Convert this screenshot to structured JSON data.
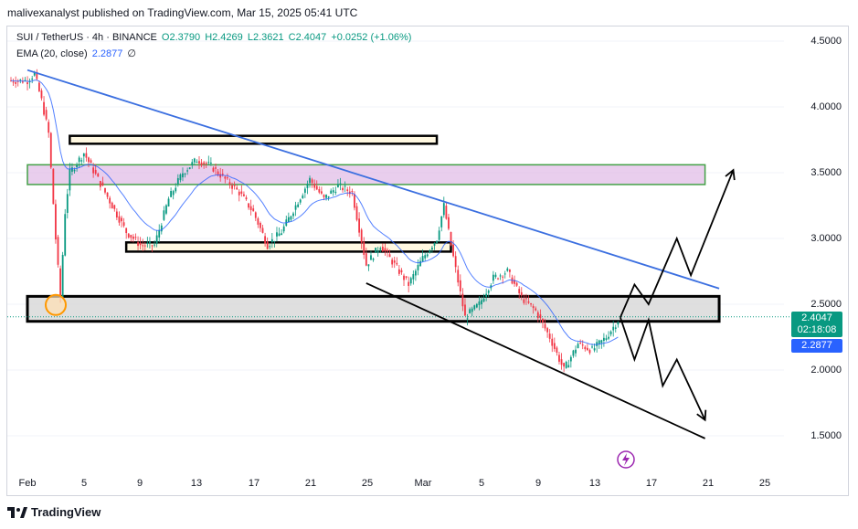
{
  "header": {
    "published_by": "malivexanalyst published on TradingView.com, Mar 15, 2025 05:41 UTC"
  },
  "legend": {
    "symbol": "SUI / TetherUS · 4h · BINANCE",
    "open": "O2.3790",
    "high": "H2.4269",
    "low": "L2.3621",
    "close": "C2.4047",
    "change": "+0.0252 (+1.06%)",
    "ema_label": "EMA (20, close)",
    "ema_value": "2.2877",
    "ema_suffix": "∅"
  },
  "price_axis": [
    "4.5000",
    "4.0000",
    "3.5000",
    "3.0000",
    "2.5000",
    "2.0000",
    "1.5000"
  ],
  "tags": {
    "last_price": "2.4047",
    "countdown": "02:18:08",
    "ema": "2.2877"
  },
  "time_axis": [
    "Feb",
    "5",
    "9",
    "13",
    "17",
    "21",
    "25",
    "Mar",
    "5",
    "9",
    "13",
    "17",
    "21",
    "25"
  ],
  "footer": {
    "brand": "TradingView"
  },
  "colors": {
    "up": "#089981",
    "down": "#f23645",
    "ema": "#2962ff",
    "trendline": "#3b6fe0",
    "resistance_zone": "#e1bee7",
    "support_zone": "#d9d9d9"
  },
  "chart_data": {
    "type": "candlestick",
    "symbol": "SUI / TetherUS",
    "interval": "4h",
    "ylim": [
      1.4,
      4.65
    ],
    "price_ticks": [
      4.5,
      4.0,
      3.5,
      3.0,
      2.5,
      2.0,
      1.5
    ],
    "last": {
      "open": 2.379,
      "high": 2.4269,
      "low": 2.3621,
      "close": 2.4047
    },
    "ema20": 2.2877,
    "anchors": [
      [
        "2025-02-01",
        4.2
      ],
      [
        "2025-02-01T12",
        4.25
      ],
      [
        "2025-02-02",
        4.05
      ],
      [
        "2025-02-02T12",
        3.8
      ],
      [
        "2025-02-03",
        3.0
      ],
      [
        "2025-02-03T08",
        2.55
      ],
      [
        "2025-02-03T16",
        3.2
      ],
      [
        "2025-02-04",
        3.5
      ],
      [
        "2025-02-05",
        3.65
      ],
      [
        "2025-02-06",
        3.45
      ],
      [
        "2025-02-07",
        3.25
      ],
      [
        "2025-02-08",
        3.05
      ],
      [
        "2025-02-09",
        2.95
      ],
      [
        "2025-02-10",
        2.95
      ],
      [
        "2025-02-11",
        3.3
      ],
      [
        "2025-02-12",
        3.5
      ],
      [
        "2025-02-13",
        3.6
      ],
      [
        "2025-02-14",
        3.55
      ],
      [
        "2025-02-15",
        3.45
      ],
      [
        "2025-02-16",
        3.35
      ],
      [
        "2025-02-17",
        3.2
      ],
      [
        "2025-02-18",
        2.95
      ],
      [
        "2025-02-19",
        3.05
      ],
      [
        "2025-02-20",
        3.25
      ],
      [
        "2025-02-21",
        3.45
      ],
      [
        "2025-02-22",
        3.3
      ],
      [
        "2025-02-23",
        3.4
      ],
      [
        "2025-02-24",
        3.35
      ],
      [
        "2025-02-25",
        2.8
      ],
      [
        "2025-02-26",
        2.95
      ],
      [
        "2025-02-27",
        2.8
      ],
      [
        "2025-02-28",
        2.65
      ],
      [
        "2025-03-01",
        2.85
      ],
      [
        "2025-03-02",
        3.0
      ],
      [
        "2025-03-02T12",
        3.25
      ],
      [
        "2025-03-03",
        2.95
      ],
      [
        "2025-03-04",
        2.4
      ],
      [
        "2025-03-05",
        2.5
      ],
      [
        "2025-03-06",
        2.7
      ],
      [
        "2025-03-07",
        2.75
      ],
      [
        "2025-03-08",
        2.55
      ],
      [
        "2025-03-09",
        2.45
      ],
      [
        "2025-03-10",
        2.25
      ],
      [
        "2025-03-11",
        2.0
      ],
      [
        "2025-03-12",
        2.2
      ],
      [
        "2025-03-13",
        2.15
      ],
      [
        "2025-03-14",
        2.25
      ],
      [
        "2025-03-15",
        2.4047
      ]
    ],
    "zones": [
      {
        "name": "top-box",
        "y": [
          3.78,
          3.72
        ],
        "x": [
          "2025-02-04",
          "2025-03-02"
        ]
      },
      {
        "name": "resistance-zone",
        "y": [
          3.56,
          3.41
        ],
        "x": [
          "2025-02-01",
          "2025-03-21"
        ]
      },
      {
        "name": "mid-box",
        "y": [
          2.97,
          2.9
        ],
        "x": [
          "2025-02-08",
          "2025-03-03"
        ]
      },
      {
        "name": "support-zone",
        "y": [
          2.56,
          2.37
        ],
        "x": [
          "2025-02-01",
          "2025-03-22"
        ]
      }
    ],
    "trendlines": [
      {
        "name": "descending-resistance",
        "from": [
          "2025-02-01",
          4.28
        ],
        "to": [
          "2025-03-22",
          2.62
        ]
      },
      {
        "name": "lower-channel",
        "from": [
          "2025-02-25",
          2.66
        ],
        "to": [
          "2025-03-21",
          1.48
        ]
      }
    ],
    "projection_paths": [
      [
        [
          "2025-03-15",
          2.4
        ],
        [
          "2025-03-16",
          2.65
        ],
        [
          "2025-03-17",
          2.5
        ],
        [
          "2025-03-19",
          3.0
        ],
        [
          "2025-03-20",
          2.72
        ],
        [
          "2025-03-23",
          3.52
        ]
      ],
      [
        [
          "2025-03-15",
          2.4
        ],
        [
          "2025-03-16",
          2.08
        ],
        [
          "2025-03-17",
          2.38
        ],
        [
          "2025-03-18",
          1.88
        ],
        [
          "2025-03-19",
          2.08
        ],
        [
          "2025-03-21",
          1.62
        ]
      ]
    ]
  }
}
